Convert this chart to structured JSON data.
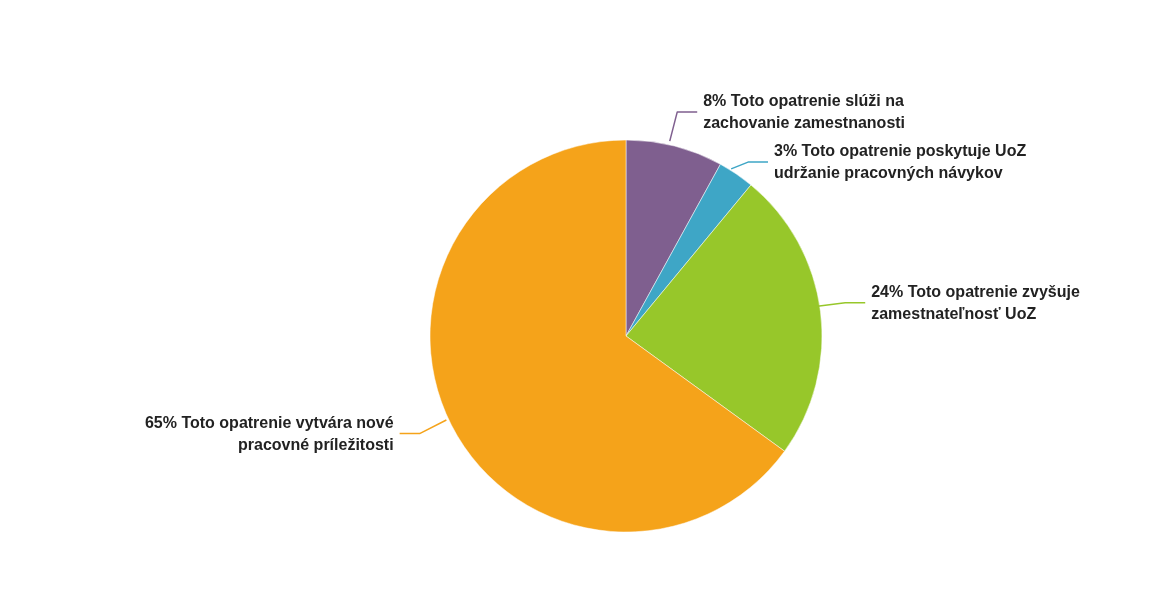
{
  "chart_data": {
    "type": "pie",
    "categories": [
      "Toto opatrenie slúži na zachovanie zamestnanosti",
      "Toto opatrenie poskytuje UoZ udržanie pracovných návykov",
      "Toto opatrenie zvyšuje zamestnateľnosť UoZ",
      "Toto opatrenie vytvára nové pracovné príležitosti"
    ],
    "values": [
      8,
      3,
      24,
      65
    ],
    "value_labels": [
      "8%",
      "3%",
      "24%",
      "65%"
    ],
    "colors": [
      "#7f5f8f",
      "#3ea6c6",
      "#97c72a",
      "#f5a31a"
    ]
  }
}
